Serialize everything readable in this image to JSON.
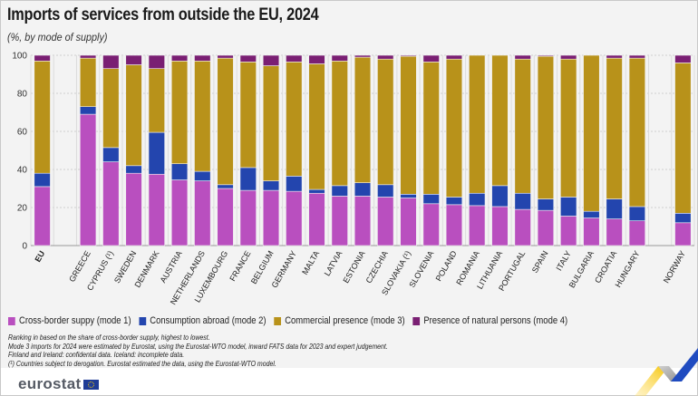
{
  "header": {
    "title": "Imports of services from outside the EU, 2024",
    "subtitle": "(%, by mode of supply)"
  },
  "legend": [
    {
      "label": "Cross-border suppy (mode 1)",
      "color": "#b94fbf"
    },
    {
      "label": "Consumption abroad (mode 2)",
      "color": "#2345ae"
    },
    {
      "label": "Commercial presence (mode 3)",
      "color": "#b8921a"
    },
    {
      "label": "Presence of natural persons (mode 4)",
      "color": "#7a1f73"
    }
  ],
  "notes": [
    "Ranking in based on the share of cross-border supply, highest to lowest.",
    "Mode 3 imports for 2024 were estimated by Eurostat, using the Eurostat-WTO model, inward FATS data for 2023 and expert judgement.",
    "Finland and Ireland: confidental data. Iceland: incomplete data.",
    "(¹) Countries subject to derogation. Eurostat estimated the data, using the Eurostat-WTO model."
  ],
  "footer": {
    "brand": "eurostat"
  },
  "chart_data": {
    "type": "bar",
    "stacked": true,
    "title": "Imports of services from outside the EU, 2024",
    "subtitle": "(%, by mode of supply)",
    "xlabel": "",
    "ylabel": "",
    "ylim": [
      0,
      100
    ],
    "yticks": [
      0,
      20,
      40,
      60,
      80,
      100
    ],
    "grid": true,
    "legend_position": "bottom",
    "categories": [
      "EU",
      "",
      "GREECE",
      "CYPRUS (¹)",
      "SWEDEN",
      "DENMARK",
      "AUSTRIA",
      "NETHERLANDS",
      "LUXEMBOURG",
      "FRANCE",
      "BELGIUM",
      "GERMANY",
      "MALTA",
      "LATVIA",
      "ESTONIA",
      "CZECHIA",
      "SLOVAKIA (¹)",
      "SLOVENIA",
      "POLAND",
      "ROMANIA",
      "LITHUANIA",
      "PORTUGAL",
      "SPAIN",
      "ITALY",
      "BULGARIA",
      "CROATIA",
      "HUNGARY",
      "",
      "NORWAY"
    ],
    "series": [
      {
        "name": "Cross-border suppy (mode 1)",
        "color": "#b94fbf",
        "values": [
          31,
          null,
          69,
          44,
          38,
          37.5,
          34.5,
          34,
          30,
          29,
          29,
          28.5,
          27.5,
          26,
          26,
          25.5,
          25,
          22,
          21.5,
          21,
          20.5,
          19,
          18.5,
          15.5,
          14.5,
          14,
          13,
          null,
          12
        ]
      },
      {
        "name": "Consumption abroad (mode 2)",
        "color": "#2345ae",
        "values": [
          7,
          null,
          4,
          7.5,
          4,
          22,
          8.5,
          5,
          2,
          12,
          5,
          8,
          2,
          5.5,
          7,
          6.5,
          2,
          5,
          4,
          6.5,
          11,
          8.5,
          6,
          10,
          3.5,
          10.5,
          7.5,
          null,
          5
        ]
      },
      {
        "name": "Commercial presence (mode 3)",
        "color": "#b8921a",
        "values": [
          59,
          null,
          25.5,
          41.5,
          53,
          33.5,
          54,
          58,
          66.5,
          55.5,
          60.5,
          60,
          66,
          65.5,
          66,
          66,
          72.5,
          69.5,
          72.5,
          72.5,
          68.5,
          70.5,
          75,
          72.5,
          82,
          74,
          78,
          null,
          79
        ]
      },
      {
        "name": "Presence of natural persons (mode 4)",
        "color": "#7a1f73",
        "values": [
          3,
          null,
          1.5,
          7,
          5,
          7,
          3,
          3,
          1.5,
          3.5,
          5.5,
          3.5,
          4.5,
          3,
          1,
          2,
          0.5,
          3.5,
          2,
          0,
          0,
          2,
          0.5,
          2,
          0,
          1.5,
          1.5,
          null,
          4
        ]
      }
    ]
  }
}
